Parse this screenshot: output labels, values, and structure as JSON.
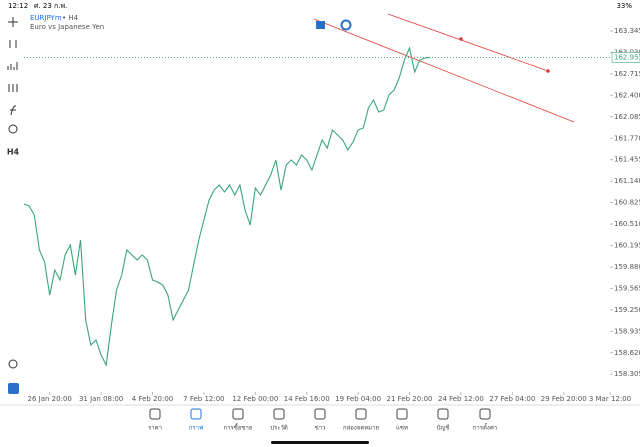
{
  "status_bar": {
    "time": "12:12",
    "date": "ศ. 23 ก.พ.",
    "battery": "33%"
  },
  "symbol": {
    "name": "EURJPYm",
    "timeframe": "• H4",
    "description": "Euro vs Japanese Yen"
  },
  "toolbar": {
    "timeframe": "H4"
  },
  "chart_data": {
    "type": "line",
    "series": [
      {
        "name": "EURJPYm",
        "color": "#3aa57a",
        "values": [
          160.805,
          160.775,
          160.643,
          160.129,
          159.953,
          159.468,
          159.835,
          159.688,
          160.056,
          160.202,
          159.762,
          160.276,
          159.101,
          158.734,
          158.807,
          158.587,
          158.44,
          159.028,
          159.542,
          159.762,
          160.129,
          160.056,
          159.982,
          160.056,
          159.982,
          159.688,
          159.659,
          159.615,
          159.468,
          159.101,
          159.248,
          159.395,
          159.542,
          159.909,
          160.276,
          160.57,
          160.863,
          161.01,
          161.084,
          160.981,
          161.084,
          160.937,
          161.084,
          160.716,
          160.496,
          161.039,
          160.937,
          161.084,
          161.23,
          161.451,
          161.01,
          161.377,
          161.451,
          161.377,
          161.524,
          161.451,
          161.304,
          161.524,
          161.744,
          161.627,
          161.891,
          161.818,
          161.744,
          161.597,
          161.715,
          161.891,
          161.921,
          162.214,
          162.332,
          162.156,
          162.185,
          162.405,
          162.479,
          162.655,
          162.919,
          163.095,
          162.743,
          162.919,
          162.949,
          162.957
        ]
      }
    ],
    "current_price": {
      "value": 162.957,
      "label": "162.957"
    },
    "xlim": [
      0,
      114
    ],
    "xticks": [
      {
        "value": 5,
        "label": "26 Jan 20:00"
      },
      {
        "value": 15,
        "label": "31 Jan 08:00"
      },
      {
        "value": 25,
        "label": "4 Feb 20:00"
      },
      {
        "value": 35,
        "label": "7 Feb 12:00"
      },
      {
        "value": 45,
        "label": "12 Feb 00:00"
      },
      {
        "value": 55,
        "label": "14 Feb 16:00"
      },
      {
        "value": 65,
        "label": "19 Feb 04:00"
      },
      {
        "value": 75,
        "label": "21 Feb 20:00"
      },
      {
        "value": 85,
        "label": "24 Feb 12:00"
      },
      {
        "value": 95,
        "label": "27 Feb 04:00"
      },
      {
        "value": 105,
        "label": "29 Feb 20:00"
      },
      {
        "value": 114,
        "label": "3 Mar 12:00"
      }
    ],
    "ylim": [
      158.044,
      163.624
    ],
    "yticks": [
      {
        "value": 158.305,
        "label": "158.305"
      },
      {
        "value": 158.62,
        "label": "158.620"
      },
      {
        "value": 158.935,
        "label": "158.935"
      },
      {
        "value": 159.25,
        "label": "159.250"
      },
      {
        "value": 159.565,
        "label": "159.565"
      },
      {
        "value": 159.88,
        "label": "159.880"
      },
      {
        "value": 160.195,
        "label": "160.195"
      },
      {
        "value": 160.51,
        "label": "160.510"
      },
      {
        "value": 160.825,
        "label": "160.825"
      },
      {
        "value": 161.14,
        "label": "161.140"
      },
      {
        "value": 161.455,
        "label": "161.455"
      },
      {
        "value": 161.77,
        "label": "161.770"
      },
      {
        "value": 162.085,
        "label": "162.085"
      },
      {
        "value": 162.4,
        "label": "162.400"
      },
      {
        "value": 162.715,
        "label": "162.715"
      },
      {
        "value": 163.03,
        "label": "163.030"
      },
      {
        "value": 163.345,
        "label": "163.345"
      }
    ],
    "grid": false
  },
  "nav": {
    "tabs": [
      "ราคา",
      "กราฟ",
      "การซื้อขาย",
      "ประวัติ",
      "ข่าว",
      "กล่องจดหมาย",
      "แชท",
      "บัญชี",
      "การตั้งค่า"
    ]
  }
}
